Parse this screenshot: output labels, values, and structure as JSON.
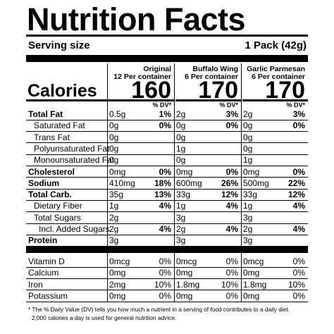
{
  "title": "Nutrition Facts",
  "serving": {
    "label": "Serving size",
    "value": "1 Pack (42g)"
  },
  "columns": [
    {
      "flavor": "Original",
      "per_container": "12 Per container",
      "calories": "160"
    },
    {
      "flavor": "Buffalo Wing",
      "per_container": "6 Per container",
      "calories": "170"
    },
    {
      "flavor": "Garlic Parmesan",
      "per_container": "6 Per container",
      "calories": "170"
    }
  ],
  "calories_label": "Calories",
  "dv_header": "% DV*",
  "nutrients": [
    {
      "label": "Total Fat",
      "bold": true,
      "indent": 0,
      "values": [
        [
          "0.5g",
          "1%"
        ],
        [
          "2g",
          "3%"
        ],
        [
          "2g",
          "3%"
        ]
      ]
    },
    {
      "label": "Saturated Fat",
      "bold": false,
      "indent": 1,
      "values": [
        [
          "0g",
          "0%"
        ],
        [
          "0g",
          "0%"
        ],
        [
          "0g",
          "0%"
        ]
      ]
    },
    {
      "label": "Trans Fat",
      "bold": false,
      "indent": 1,
      "values": [
        [
          "0g",
          ""
        ],
        [
          "0g",
          ""
        ],
        [
          "0g",
          ""
        ]
      ]
    },
    {
      "label": "Polyunsaturated Fat",
      "bold": false,
      "indent": 1,
      "values": [
        [
          "0g",
          ""
        ],
        [
          "1g",
          ""
        ],
        [
          "0g",
          ""
        ]
      ]
    },
    {
      "label": "Monounsaturated Fat",
      "bold": false,
      "indent": 1,
      "values": [
        [
          "0g",
          ""
        ],
        [
          "0g",
          ""
        ],
        [
          "1g",
          ""
        ]
      ]
    },
    {
      "label": "Cholesterol",
      "bold": true,
      "indent": 0,
      "values": [
        [
          "0mg",
          "0%"
        ],
        [
          "0mg",
          "0%"
        ],
        [
          "0mg",
          "0%"
        ]
      ]
    },
    {
      "label": "Sodium",
      "bold": true,
      "indent": 0,
      "values": [
        [
          "410mg",
          "18%"
        ],
        [
          "600mg",
          "26%"
        ],
        [
          "500mg",
          "22%"
        ]
      ]
    },
    {
      "label": "Total Carb.",
      "bold": true,
      "indent": 0,
      "values": [
        [
          "35g",
          "13%"
        ],
        [
          "33g",
          "12%"
        ],
        [
          "33g",
          "12%"
        ]
      ]
    },
    {
      "label": "Dietary Fiber",
      "bold": false,
      "indent": 1,
      "values": [
        [
          "1g",
          "4%"
        ],
        [
          "1g",
          "4%"
        ],
        [
          "1g",
          "4%"
        ]
      ]
    },
    {
      "label": "Total Sugars",
      "bold": false,
      "indent": 1,
      "values": [
        [
          "2g",
          ""
        ],
        [
          "3g",
          ""
        ],
        [
          "3g",
          ""
        ]
      ]
    },
    {
      "label": "Incl. Added Sugars",
      "bold": false,
      "indent": 2,
      "values": [
        [
          "2g",
          "4%"
        ],
        [
          "2g",
          "4%"
        ],
        [
          "2g",
          "4%"
        ]
      ]
    },
    {
      "label": "Protein",
      "bold": true,
      "indent": 0,
      "values": [
        [
          "3g",
          ""
        ],
        [
          "3g",
          ""
        ],
        [
          "3g",
          ""
        ]
      ]
    }
  ],
  "vitamins": [
    {
      "label": "Vitamin D",
      "values": [
        [
          "0mcg",
          "0%"
        ],
        [
          "0mcg",
          "0%"
        ],
        [
          "0mcg",
          "0%"
        ]
      ]
    },
    {
      "label": "Calcium",
      "values": [
        [
          "0mg",
          "0%"
        ],
        [
          "0mg",
          "0%"
        ],
        [
          "0mg",
          "0%"
        ]
      ]
    },
    {
      "label": "Iron",
      "values": [
        [
          "2mg",
          "10%"
        ],
        [
          "1.8mg",
          "10%"
        ],
        [
          "1.8mg",
          "10%"
        ]
      ]
    },
    {
      "label": "Potassium",
      "values": [
        [
          "0mg",
          "0%"
        ],
        [
          "0mg",
          "0%"
        ],
        [
          "0mg",
          "0%"
        ]
      ]
    }
  ],
  "footnote": [
    "* The % Daily Value (DV) tells you how much a nutrient in a serving of food contributes to a daily diet.",
    "2,000 calories a day is used for general nutrition advice."
  ]
}
